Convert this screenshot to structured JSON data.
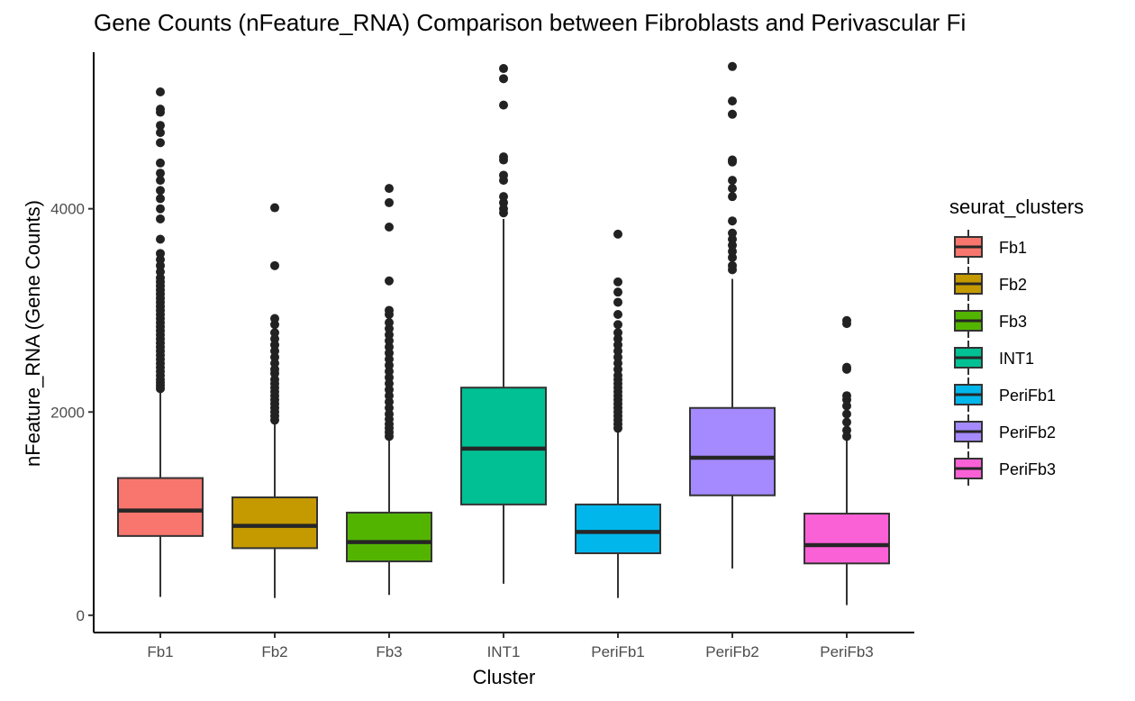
{
  "chart_data": {
    "type": "box",
    "title": "Gene Counts (nFeature_RNA) Comparison between Fibroblasts and Perivascular Fi",
    "xlabel": "Cluster",
    "ylabel": "nFeature_RNA (Gene Counts)",
    "ylim": [
      -170,
      5540
    ],
    "yticks": [
      0,
      2000,
      4000
    ],
    "grid": false,
    "legend": {
      "title": "seurat_clusters",
      "placement": "right"
    },
    "categories": [
      "Fb1",
      "Fb2",
      "Fb3",
      "INT1",
      "PeriFb1",
      "PeriFb2",
      "PeriFb3"
    ],
    "colors": [
      "#F8766D",
      "#C49A00",
      "#53B400",
      "#00C094",
      "#00B6EB",
      "#A58AFF",
      "#FB61D7"
    ],
    "boxes": [
      {
        "name": "Fb1",
        "whisker_low": 180,
        "q1": 780,
        "median": 1030,
        "q3": 1350,
        "whisker_high": 2200,
        "outliers": [
          2230,
          2260,
          2290,
          2320,
          2360,
          2400,
          2440,
          2480,
          2520,
          2560,
          2600,
          2640,
          2680,
          2720,
          2760,
          2800,
          2840,
          2880,
          2920,
          2960,
          3000,
          3040,
          3080,
          3120,
          3160,
          3200,
          3240,
          3280,
          3320,
          3380,
          3440,
          3500,
          3560,
          3700,
          3900,
          4000,
          4100,
          4180,
          4280,
          4350,
          4450,
          4650,
          4750,
          4820,
          4950,
          4980,
          5150
        ]
      },
      {
        "name": "Fb2",
        "whisker_low": 170,
        "q1": 660,
        "median": 880,
        "q3": 1160,
        "whisker_high": 1900,
        "outliers": [
          1920,
          1960,
          2000,
          2040,
          2080,
          2120,
          2160,
          2200,
          2240,
          2280,
          2320,
          2380,
          2420,
          2480,
          2540,
          2600,
          2660,
          2720,
          2780,
          2860,
          2920,
          3440,
          4010
        ]
      },
      {
        "name": "Fb3",
        "whisker_low": 200,
        "q1": 530,
        "median": 720,
        "q3": 1010,
        "whisker_high": 1730,
        "outliers": [
          1760,
          1800,
          1840,
          1880,
          1930,
          1980,
          2040,
          2100,
          2160,
          2220,
          2280,
          2340,
          2400,
          2460,
          2520,
          2580,
          2640,
          2700,
          2760,
          2820,
          2880,
          2960,
          3000,
          3290,
          3820,
          4060,
          4200
        ]
      },
      {
        "name": "INT1",
        "whisker_low": 310,
        "q1": 1090,
        "median": 1640,
        "q3": 2240,
        "whisker_high": 3900,
        "outliers": [
          3960,
          4000,
          4060,
          4120,
          4280,
          4330,
          4480,
          4510,
          5020,
          5280,
          5380
        ]
      },
      {
        "name": "PeriFb1",
        "whisker_low": 170,
        "q1": 610,
        "median": 820,
        "q3": 1090,
        "whisker_high": 1800,
        "outliers": [
          1840,
          1880,
          1920,
          1960,
          2000,
          2040,
          2080,
          2120,
          2160,
          2200,
          2240,
          2280,
          2320,
          2360,
          2420,
          2480,
          2540,
          2600,
          2660,
          2720,
          2780,
          2860,
          2960,
          3080,
          3180,
          3280,
          3750
        ]
      },
      {
        "name": "PeriFb2",
        "whisker_low": 460,
        "q1": 1180,
        "median": 1550,
        "q3": 2040,
        "whisker_high": 3310,
        "outliers": [
          3400,
          3440,
          3520,
          3580,
          3640,
          3700,
          3760,
          3880,
          4120,
          4200,
          4280,
          4460,
          4480,
          4930,
          5060,
          5400
        ]
      },
      {
        "name": "PeriFb3",
        "whisker_low": 100,
        "q1": 510,
        "median": 690,
        "q3": 1000,
        "whisker_high": 1720,
        "outliers": [
          1760,
          1820,
          1900,
          1980,
          2060,
          2120,
          2160,
          2420,
          2440,
          2870,
          2900
        ]
      }
    ]
  }
}
